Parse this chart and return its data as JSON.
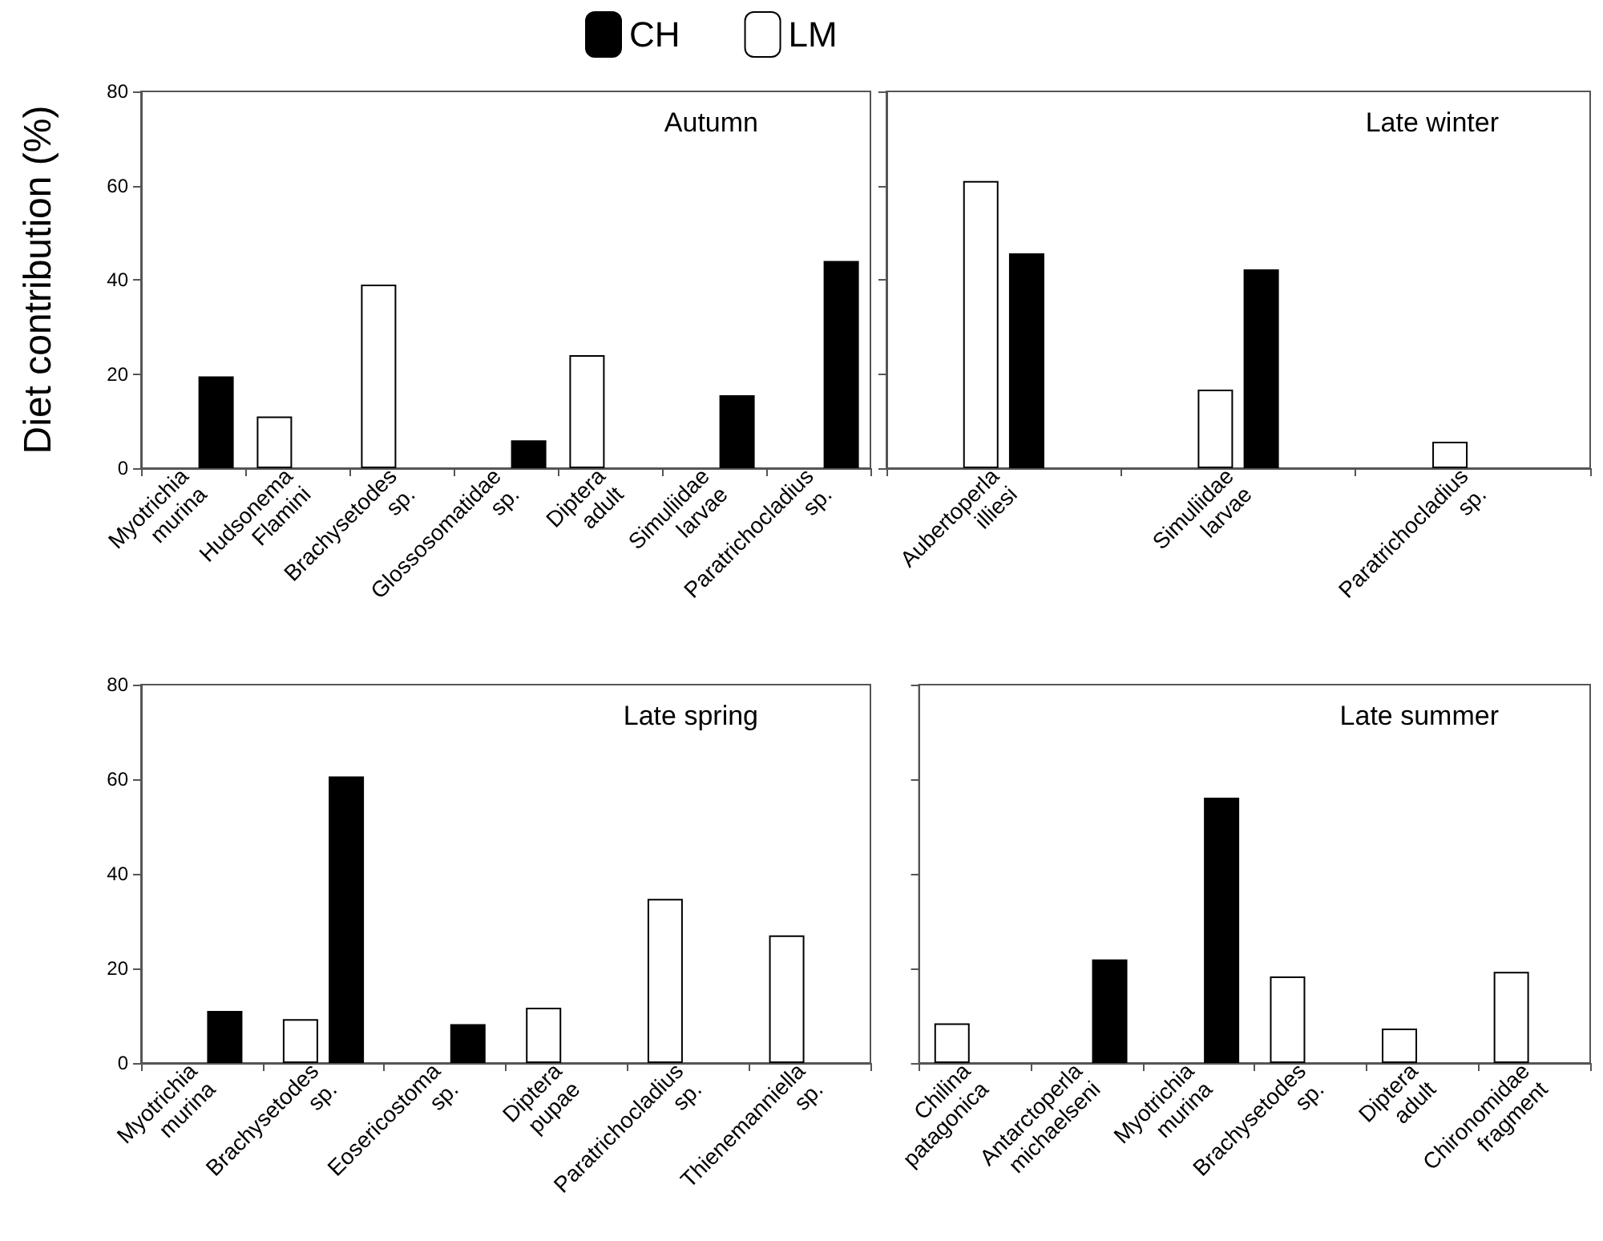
{
  "chart_data": [
    {
      "type": "bar",
      "title": "Autumn",
      "ylabel": "Diet contribution (%)",
      "legend": "top",
      "categories": [
        "Myotrichia murina",
        "Hudsonema Flamini",
        "Brachysetodes sp.",
        "Glossosomatidae sp.",
        "Diptera adult",
        "Simuliidae larvae",
        "Paratrichocladius sp."
      ],
      "series": [
        {
          "name": "LM",
          "color": "#ffffff",
          "values": [
            null,
            11,
            39,
            null,
            24,
            null,
            null
          ]
        },
        {
          "name": "CH",
          "color": "#000000",
          "values": [
            19.5,
            null,
            null,
            5.9,
            null,
            15.5,
            44
          ]
        }
      ],
      "ylim": [
        0,
        80
      ],
      "yticks": [
        0,
        20,
        40,
        60,
        80
      ],
      "grid": false
    },
    {
      "type": "bar",
      "title": "Late winter",
      "categories": [
        "Aubertoperla illiesi",
        "Simuliidae larvae",
        "Paratrichocladius sp."
      ],
      "series": [
        {
          "color": "#ffffff",
          "values": [
            61,
            16.7,
            5.6
          ]
        },
        {
          "color": "#000000",
          "values": [
            45.6,
            42.2,
            null
          ]
        }
      ],
      "ylim": [
        0,
        80
      ],
      "yticks": [
        0,
        20,
        40,
        60,
        80
      ],
      "tick_labels": "x",
      "grid": false
    },
    {
      "type": "bar",
      "title": "Late spring",
      "categories": [
        "Myotrichia murina",
        "Brachysetodes sp.",
        "Eosericostoma sp.",
        "Diptera pupae",
        "Paratrichocladius sp.",
        "Thienemanniella sp."
      ],
      "series": [
        {
          "color": "#ffffff",
          "values": [
            null,
            9.3,
            null,
            11.7,
            34.7,
            27
          ]
        },
        {
          "color": "#000000",
          "values": [
            11,
            60.6,
            8.2,
            null,
            null,
            null
          ]
        }
      ],
      "ylim": [
        0,
        80
      ],
      "yticks": [
        0,
        20,
        40,
        60,
        80
      ],
      "grid": false
    },
    {
      "type": "bar",
      "title": "Late summer",
      "categories": [
        "Chilina patagonica",
        "Antarctoperla michaelseni",
        "Myotrichia murina",
        "Brachysetodes sp.",
        "Diptera adult",
        "Chironomidae fragment"
      ],
      "series": [
        {
          "color": "#ffffff",
          "values": [
            8.4,
            null,
            null,
            18.3,
            7.3,
            19.3
          ]
        },
        {
          "color": "#000000",
          "values": [
            null,
            21.9,
            56.1,
            null,
            null,
            null
          ]
        }
      ],
      "ylim": [
        0,
        80
      ],
      "yticks": [
        0,
        20,
        40,
        60,
        80
      ],
      "tick_labels": "x",
      "grid": false
    }
  ]
}
